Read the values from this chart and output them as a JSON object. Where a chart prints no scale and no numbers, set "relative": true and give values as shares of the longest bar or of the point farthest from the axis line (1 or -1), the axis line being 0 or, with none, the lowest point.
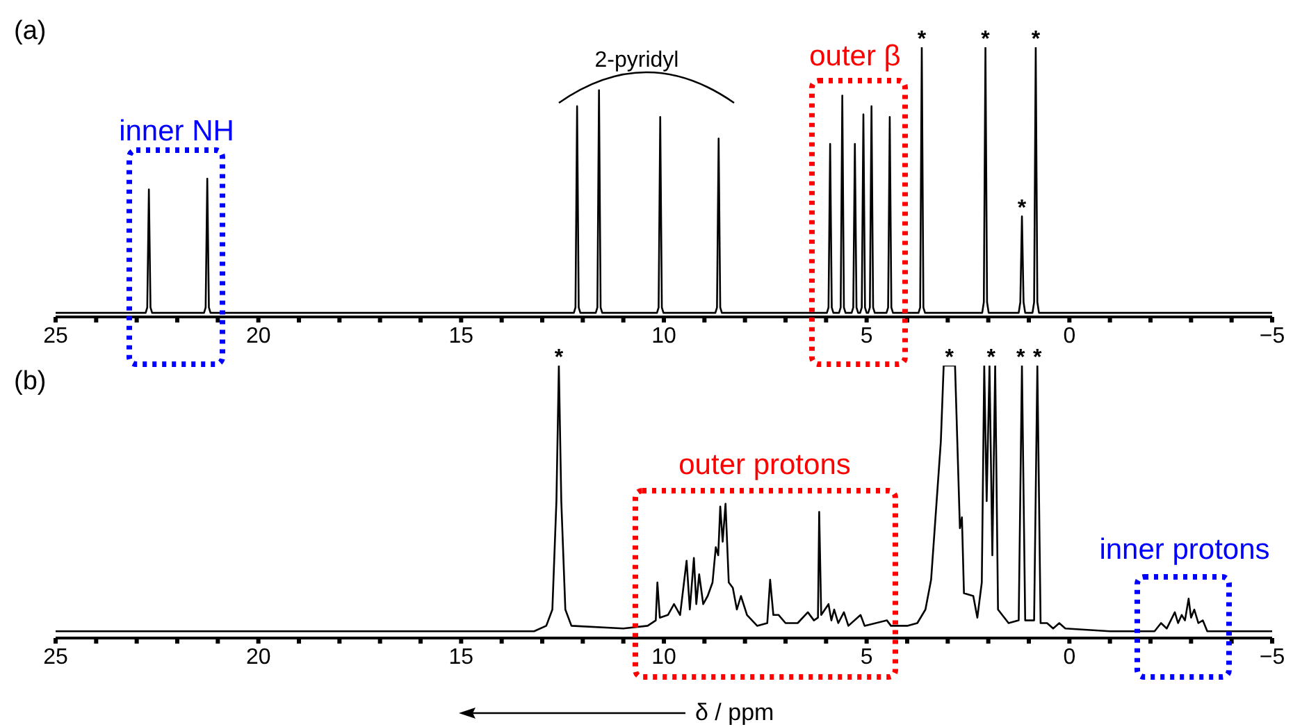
{
  "chart_data": [
    {
      "type": "line",
      "title": "(a)",
      "relative": true,
      "xlim": [
        25,
        -5
      ],
      "xticks": [
        25,
        {
          "value": 24,
          "label": null
        },
        {
          "value": 23,
          "label": null
        },
        {
          "value": 22,
          "label": null
        },
        {
          "value": 21,
          "label": null
        },
        20,
        {
          "value": 19,
          "label": null
        },
        {
          "value": 18,
          "label": null
        },
        {
          "value": 17,
          "label": null
        },
        {
          "value": 16,
          "label": null
        },
        15,
        {
          "value": 14,
          "label": null
        },
        {
          "value": 13,
          "label": null
        },
        {
          "value": 12,
          "label": null
        },
        {
          "value": 11,
          "label": null
        },
        10,
        {
          "value": 9,
          "label": null
        },
        {
          "value": 8,
          "label": null
        },
        {
          "value": 7,
          "label": null
        },
        {
          "value": 6,
          "label": null
        },
        5,
        {
          "value": 4,
          "label": null
        },
        {
          "value": 3,
          "label": null
        },
        {
          "value": 2,
          "label": null
        },
        {
          "value": 1,
          "label": null
        },
        0,
        {
          "value": -1,
          "label": null
        },
        {
          "value": -2,
          "label": null
        },
        {
          "value": -3,
          "label": null
        },
        {
          "value": -4,
          "label": null
        },
        {
          "value": -5,
          "label": "−5"
        }
      ],
      "series": [
        {
          "color": "#000000",
          "x": [
            25,
            22.78,
            22.74,
            22.7,
            22.66,
            22.62,
            21.34,
            21.3,
            21.26,
            21.22,
            21.18,
            12.22,
            12.18,
            12.14,
            12.1,
            12.06,
            11.68,
            11.64,
            11.6,
            11.56,
            11.52,
            10.17,
            10.13,
            10.09,
            10.05,
            10.01,
            8.73,
            8.69,
            8.65,
            8.61,
            8.57,
            5.98,
            5.94,
            5.9,
            5.86,
            5.82,
            5.68,
            5.64,
            5.6,
            5.56,
            5.52,
            5.37,
            5.33,
            5.29,
            5.25,
            5.21,
            5.16,
            5.12,
            5.08,
            5.04,
            5.0,
            4.96,
            4.92,
            4.88,
            4.84,
            4.8,
            4.51,
            4.47,
            4.43,
            4.39,
            4.35,
            3.72,
            3.68,
            3.64,
            3.6,
            3.56,
            2.15,
            2.11,
            2.07,
            2.03,
            1.99,
            1.25,
            1.21,
            1.17,
            1.13,
            1.09,
            0.91,
            0.87,
            0.83,
            0.79,
            0.75,
            -5
          ],
          "values": [
            0.01,
            0.01,
            0.03,
            0.47,
            0.03,
            0.01,
            0.01,
            0.03,
            0.51,
            0.03,
            0.01,
            0.01,
            0.03,
            0.78,
            0.03,
            0.01,
            0.01,
            0.03,
            0.84,
            0.03,
            0.01,
            0.01,
            0.03,
            0.74,
            0.03,
            0.01,
            0.01,
            0.03,
            0.66,
            0.03,
            0.01,
            0.01,
            0.03,
            0.64,
            0.03,
            0.01,
            0.01,
            0.03,
            0.82,
            0.03,
            0.01,
            0.01,
            0.03,
            0.64,
            0.03,
            0.01,
            0.01,
            0.03,
            0.75,
            0.03,
            0.01,
            0.01,
            0.03,
            0.78,
            0.03,
            0.01,
            0.01,
            0.03,
            0.74,
            0.03,
            0.01,
            0.01,
            0.03,
            1,
            0.03,
            0.01,
            0.01,
            0.05,
            1,
            0.05,
            0.01,
            0.01,
            0.05,
            0.37,
            0.05,
            0.01,
            0.01,
            0.05,
            1,
            0.05,
            0.01,
            0.01
          ]
        }
      ],
      "annotations": [
        "2-pyridyl",
        "inner NH",
        "outer β",
        {
          "text": "*",
          "x": 3.64,
          "y": 1
        },
        {
          "text": "*",
          "x": 2.07,
          "y": 1
        },
        {
          "text": "*",
          "x": 1.17,
          "y": 0.37
        },
        {
          "text": "*",
          "x": 0.83,
          "y": 1
        }
      ]
    },
    {
      "type": "line",
      "title": "(b)",
      "relative": true,
      "xlabel": "δ / ppm",
      "xlim": [
        25,
        -5
      ],
      "xticks": [
        25,
        {
          "value": 24,
          "label": null
        },
        {
          "value": 23,
          "label": null
        },
        {
          "value": 22,
          "label": null
        },
        {
          "value": 21,
          "label": null
        },
        20,
        {
          "value": 19,
          "label": null
        },
        {
          "value": 18,
          "label": null
        },
        {
          "value": 17,
          "label": null
        },
        {
          "value": 16,
          "label": null
        },
        15,
        {
          "value": 14,
          "label": null
        },
        {
          "value": 13,
          "label": null
        },
        {
          "value": 12,
          "label": null
        },
        {
          "value": 11,
          "label": null
        },
        10,
        {
          "value": 9,
          "label": null
        },
        {
          "value": 8,
          "label": null
        },
        {
          "value": 7,
          "label": null
        },
        {
          "value": 6,
          "label": null
        },
        5,
        {
          "value": 4,
          "label": null
        },
        {
          "value": 3,
          "label": null
        },
        {
          "value": 2,
          "label": null
        },
        {
          "value": 1,
          "label": null
        },
        0,
        {
          "value": -1,
          "label": null
        },
        {
          "value": -2,
          "label": null
        },
        {
          "value": -3,
          "label": null
        },
        {
          "value": -4,
          "label": null
        },
        {
          "value": -5,
          "label": "−5"
        }
      ],
      "series": [
        {
          "color": "#000000",
          "x": [
            25,
            13.2,
            12.9,
            12.75,
            12.65,
            12.59,
            12.53,
            12.43,
            12.28,
            11.0,
            10.4,
            10.2,
            10.16,
            10.1,
            9.9,
            9.75,
            9.6,
            9.44,
            9.36,
            9.26,
            9.2,
            9.13,
            9.03,
            8.92,
            8.8,
            8.72,
            8.66,
            8.61,
            8.55,
            8.48,
            8.4,
            8.3,
            8.2,
            8.1,
            7.95,
            7.7,
            7.45,
            7.38,
            7.3,
            7.17,
            7.0,
            6.7,
            6.45,
            6.3,
            6.2,
            6.17,
            6.12,
            5.94,
            5.87,
            5.8,
            5.7,
            5.56,
            5.45,
            5.15,
            5.05,
            4.5,
            4.4,
            4.27,
            4.0,
            3.75,
            3.55,
            3.41,
            3.17,
            3.1,
            2.82,
            2.7,
            2.65,
            2.6,
            2.37,
            2.27,
            2.16,
            2.1,
            2.04,
            1.97,
            1.9,
            1.83,
            1.76,
            1.5,
            1.25,
            1.17,
            1.09,
            0.87,
            0.79,
            0.71,
            0.55,
            0.4,
            0.25,
            0.1,
            -1,
            -2.1,
            -2.26,
            -2.4,
            -2.6,
            -2.68,
            -2.77,
            -2.85,
            -2.94,
            -3.0,
            -3.08,
            -3.18,
            -3.29,
            -3.4,
            -5
          ],
          "values": [
            0.02,
            0.02,
            0.04,
            0.1,
            0.5,
            1,
            0.5,
            0.1,
            0.04,
            0.03,
            0.04,
            0.06,
            0.2,
            0.07,
            0.08,
            0.12,
            0.08,
            0.28,
            0.1,
            0.29,
            0.12,
            0.23,
            0.12,
            0.15,
            0.2,
            0.33,
            0.3,
            0.48,
            0.35,
            0.49,
            0.2,
            0.18,
            0.1,
            0.15,
            0.08,
            0.04,
            0.05,
            0.21,
            0.08,
            0.08,
            0.05,
            0.05,
            0.09,
            0.06,
            0.07,
            0.46,
            0.08,
            0.12,
            0.06,
            0.1,
            0.05,
            0.09,
            0.04,
            0.08,
            0.04,
            0.06,
            0.04,
            0.04,
            0.04,
            0.05,
            0.1,
            0.21,
            0.72,
            1,
            1,
            0.4,
            0.44,
            0.16,
            0.15,
            0.07,
            0.2,
            1,
            0.5,
            1,
            0.3,
            1,
            0.1,
            0.05,
            0.06,
            1,
            0.06,
            0.06,
            1,
            0.05,
            0.05,
            0.03,
            0.05,
            0.03,
            0.02,
            0.02,
            0.05,
            0.03,
            0.09,
            0.05,
            0.08,
            0.06,
            0.14,
            0.07,
            0.1,
            0.05,
            0.06,
            0.02,
            0.02
          ]
        }
      ],
      "annotations": [
        "outer protons",
        "inner protons",
        {
          "text": "*",
          "x": 12.59,
          "y": 1
        },
        {
          "text": "*",
          "x": 2.96,
          "y": 1
        },
        {
          "text": "*",
          "x": 1.93,
          "y": 1
        },
        {
          "text": "*",
          "x": 1.2,
          "y": 1
        },
        {
          "text": "*",
          "x": 0.79,
          "y": 1
        }
      ]
    }
  ]
}
